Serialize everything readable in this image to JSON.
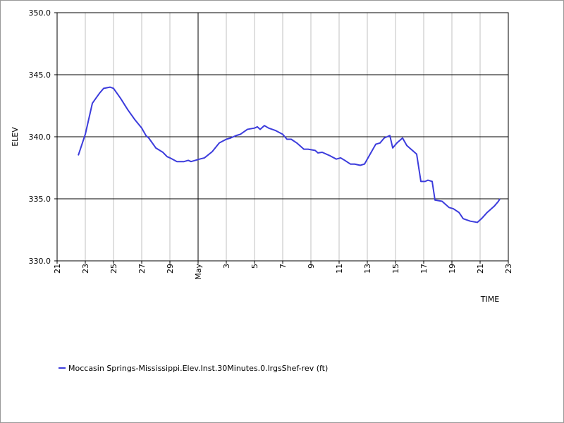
{
  "chart_data": {
    "type": "line",
    "ylabel": "ELEV",
    "xlabel": "TIME",
    "xlim": [
      0,
      32
    ],
    "ylim": [
      330,
      350
    ],
    "xticks": [
      {
        "value": 0,
        "label": "21"
      },
      {
        "value": 2,
        "label": "23"
      },
      {
        "value": 4,
        "label": "25"
      },
      {
        "value": 6,
        "label": "27"
      },
      {
        "value": 8,
        "label": "29"
      },
      {
        "value": 10,
        "label": "May"
      },
      {
        "value": 12,
        "label": "3"
      },
      {
        "value": 14,
        "label": "5"
      },
      {
        "value": 16,
        "label": "7"
      },
      {
        "value": 18,
        "label": "9"
      },
      {
        "value": 20,
        "label": "11"
      },
      {
        "value": 22,
        "label": "13"
      },
      {
        "value": 24,
        "label": "15"
      },
      {
        "value": 26,
        "label": "17"
      },
      {
        "value": 28,
        "label": "19"
      },
      {
        "value": 30,
        "label": "21"
      },
      {
        "value": 32,
        "label": "23"
      }
    ],
    "yticks": [
      {
        "value": 330,
        "label": "330.0"
      },
      {
        "value": 335,
        "label": "335.0"
      },
      {
        "value": 340,
        "label": "340.0"
      },
      {
        "value": 345,
        "label": "345.0"
      },
      {
        "value": 350,
        "label": "350.0"
      }
    ],
    "grid": true,
    "x": [
      1.5,
      2,
      2.5,
      3,
      3.3,
      3.75,
      4,
      4.5,
      5,
      5.5,
      6,
      6.3,
      6.5,
      7,
      7.5,
      7.8,
      8,
      8.5,
      9,
      9.3,
      9.5,
      9.8,
      10.1,
      10.45,
      11,
      11.5,
      12,
      12.3,
      12.7,
      13,
      13.5,
      14,
      14.2,
      14.4,
      14.7,
      15,
      15.5,
      16,
      16.3,
      16.6,
      17,
      17.5,
      17.8,
      18.3,
      18.5,
      18.8,
      19.3,
      19.8,
      20.1,
      20.4,
      20.8,
      21.1,
      21.5,
      21.8,
      22.2,
      22.6,
      22.9,
      23.2,
      23.4,
      23.6,
      23.8,
      24.1,
      24.5,
      24.8,
      25.1,
      25.5,
      25.8,
      26.1,
      26.3,
      26.6,
      26.8,
      27.3,
      27.8,
      28.1,
      28.5,
      28.8,
      29.3,
      29.8,
      30.1,
      30.5,
      31,
      31.3,
      31.4
    ],
    "series": [
      {
        "name": "Moccasin Springs-Mississippi.Elev.Inst.30Minutes.0.lrgsShef-rev (ft)",
        "color": "#3c3cdc",
        "values": [
          338.5,
          340.2,
          342.7,
          343.5,
          343.9,
          344.0,
          343.9,
          343.1,
          342.2,
          341.4,
          340.7,
          340.1,
          339.9,
          339.1,
          338.75,
          338.4,
          338.3,
          338.0,
          338.0,
          338.1,
          338.0,
          338.1,
          338.2,
          338.3,
          338.8,
          339.5,
          339.8,
          339.9,
          340.1,
          340.2,
          340.6,
          340.7,
          340.8,
          340.6,
          340.9,
          340.7,
          340.5,
          340.2,
          339.8,
          339.8,
          339.5,
          339.0,
          339.0,
          338.9,
          338.7,
          338.75,
          338.5,
          338.2,
          338.3,
          338.1,
          337.8,
          337.8,
          337.7,
          337.8,
          338.6,
          339.4,
          339.5,
          339.9,
          340.0,
          340.1,
          339.1,
          339.5,
          339.9,
          339.3,
          339.0,
          338.6,
          336.4,
          336.4,
          336.5,
          336.4,
          334.9,
          334.8,
          334.3,
          334.2,
          333.9,
          333.4,
          333.2,
          333.1,
          333.4,
          333.9,
          334.4,
          334.8,
          335.0
        ]
      }
    ]
  }
}
